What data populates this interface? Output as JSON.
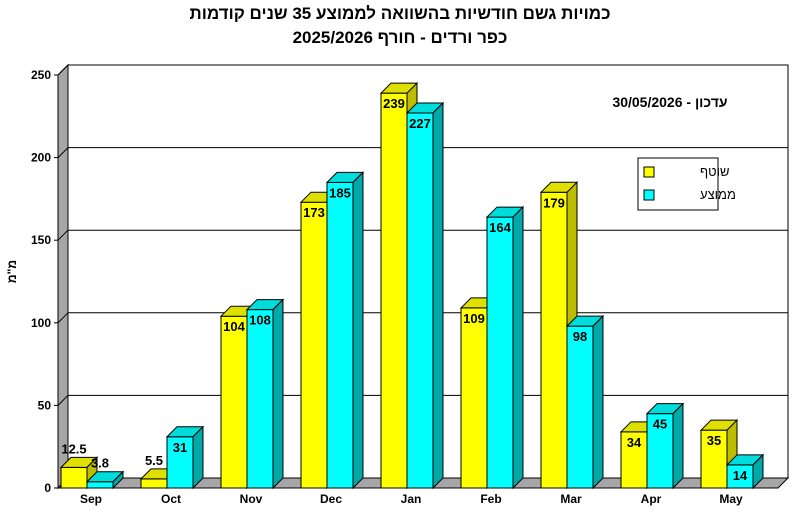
{
  "header": {
    "title_line1": "כמויות גשם חודשיות בהשוואה לממוצע 35 שנים קודמות",
    "title_line2": "כפר ורדים - חורף 2025/2026",
    "title_line3": "2025/2026",
    "update_label": "עדכון - 30/05/2026"
  },
  "chart_data": {
    "type": "bar",
    "categories": [
      "Sep",
      "Oct",
      "Nov",
      "Dec",
      "Jan",
      "Feb",
      "Mar",
      "Apr",
      "May"
    ],
    "series": [
      {
        "name": "שוטף",
        "values": [
          12.5,
          5.5,
          104,
          173,
          239,
          109,
          179,
          34,
          35
        ],
        "color": "#FFFF00",
        "side": "#BDBD00",
        "top": "#E0E000"
      },
      {
        "name": "ממוצע",
        "values": [
          3.8,
          31,
          108,
          185,
          227,
          164,
          98,
          45,
          14
        ],
        "color": "#00FFFF",
        "side": "#00A8A8",
        "top": "#00DCDC"
      }
    ],
    "ylabel": "מ\"מ",
    "ylim": [
      0,
      250
    ],
    "yticks": [
      0,
      50,
      100,
      150,
      200,
      250
    ],
    "grid": true,
    "legend_position": "right",
    "wall_color": "#A6A6A6"
  }
}
